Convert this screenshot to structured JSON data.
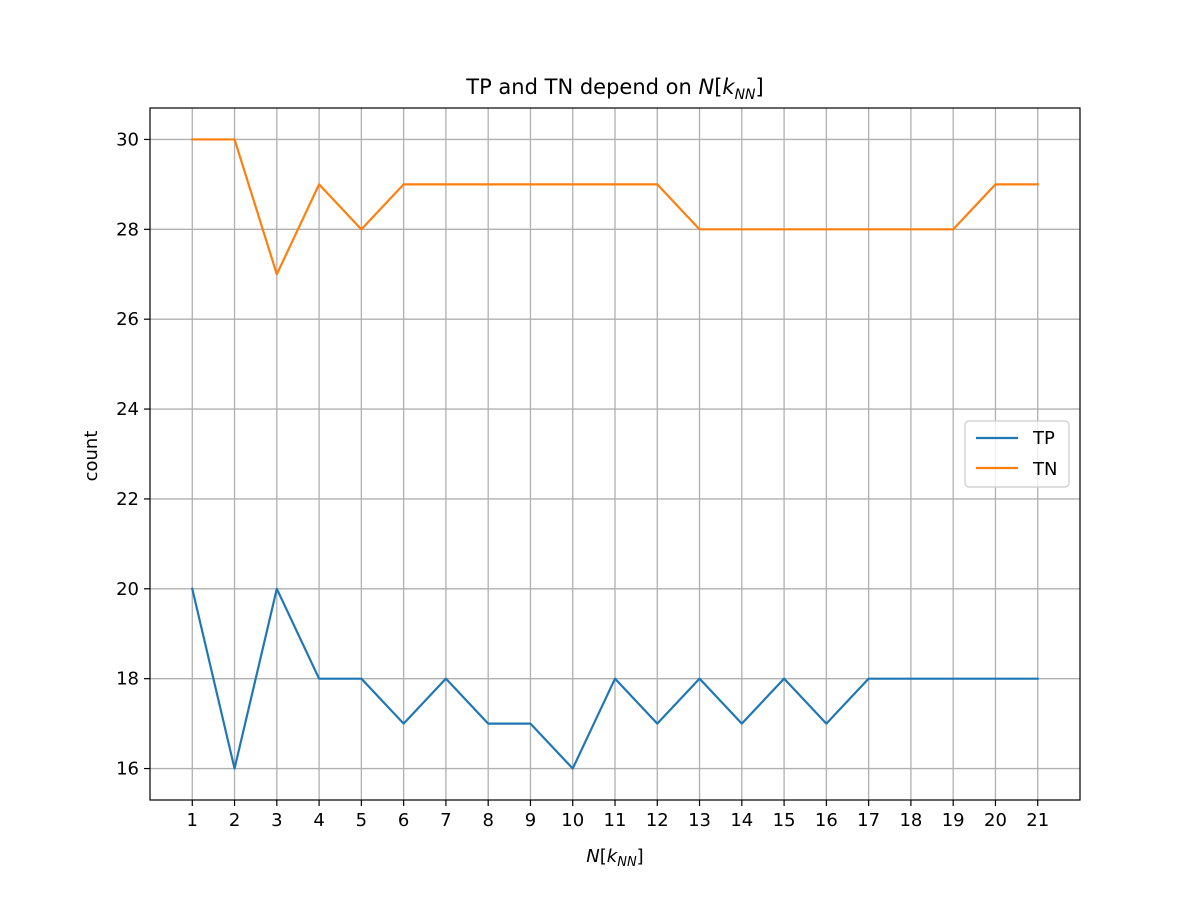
{
  "chart_data": {
    "type": "line",
    "title": {
      "prefix": "TP and TN depend on ",
      "math_symbol": "N",
      "math_open": "[",
      "math_base": "k",
      "math_sub": "NN",
      "math_close": "]"
    },
    "xlabel": {
      "math_symbol": "N",
      "math_open": "[",
      "math_base": "k",
      "math_sub": "NN",
      "math_close": "]"
    },
    "ylabel": "count",
    "x": [
      1,
      2,
      3,
      4,
      5,
      6,
      7,
      8,
      9,
      10,
      11,
      12,
      13,
      14,
      15,
      16,
      17,
      18,
      19,
      20,
      21
    ],
    "x_ticks": [
      1,
      2,
      3,
      4,
      5,
      6,
      7,
      8,
      9,
      10,
      11,
      12,
      13,
      14,
      15,
      16,
      17,
      18,
      19,
      20,
      21
    ],
    "y_ticks": [
      16,
      18,
      20,
      22,
      24,
      26,
      28,
      30
    ],
    "xlim": [
      0,
      22
    ],
    "ylim": [
      15.3,
      30.7
    ],
    "grid": true,
    "legend_position": "center-right",
    "series": [
      {
        "name": "TP",
        "color": "#1f77b4",
        "values": [
          20,
          16,
          20,
          18,
          18,
          17,
          18,
          17,
          17,
          16,
          18,
          17,
          18,
          17,
          18,
          17,
          18,
          18,
          18,
          18,
          18
        ]
      },
      {
        "name": "TN",
        "color": "#ff7f0e",
        "values": [
          30,
          30,
          27,
          29,
          28,
          29,
          29,
          29,
          29,
          29,
          29,
          29,
          28,
          28,
          28,
          28,
          28,
          28,
          28,
          29,
          29
        ]
      }
    ]
  }
}
